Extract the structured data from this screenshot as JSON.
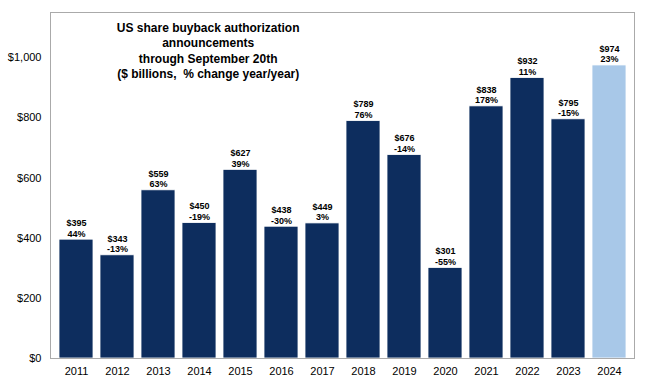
{
  "chart_data": {
    "type": "bar",
    "title": "US share buyback authorization\nannouncements\nthrough September 20th\n($ billions,  % change year/year)",
    "categories": [
      "2011",
      "2012",
      "2013",
      "2014",
      "2015",
      "2016",
      "2017",
      "2018",
      "2019",
      "2020",
      "2021",
      "2022",
      "2023",
      "2024"
    ],
    "values": [
      395,
      343,
      559,
      450,
      627,
      438,
      449,
      789,
      676,
      301,
      838,
      932,
      795,
      974
    ],
    "value_labels": [
      "$395",
      "$343",
      "$559",
      "$450",
      "$627",
      "$438",
      "$449",
      "$789",
      "$676",
      "$301",
      "$838",
      "$932",
      "$795",
      "$974"
    ],
    "pct_changes": [
      "44%",
      "-13%",
      "63%",
      "-19%",
      "39%",
      "-30%",
      "3%",
      "76%",
      "-14%",
      "-55%",
      "178%",
      "11%",
      "-15%",
      "23%"
    ],
    "colors": [
      "#0d2d5e",
      "#0d2d5e",
      "#0d2d5e",
      "#0d2d5e",
      "#0d2d5e",
      "#0d2d5e",
      "#0d2d5e",
      "#0d2d5e",
      "#0d2d5e",
      "#0d2d5e",
      "#0d2d5e",
      "#0d2d5e",
      "#0d2d5e",
      "#a8c8e8"
    ],
    "ylim": [
      0,
      1150
    ],
    "yticks": [
      {
        "value": 0,
        "label": "$0"
      },
      {
        "value": 200,
        "label": "$200"
      },
      {
        "value": 400,
        "label": "$400"
      },
      {
        "value": 600,
        "label": "$600"
      },
      {
        "value": 800,
        "label": "$800"
      },
      {
        "value": 1000,
        "label": "$1,000"
      }
    ],
    "grid": false,
    "data_labels": true
  }
}
